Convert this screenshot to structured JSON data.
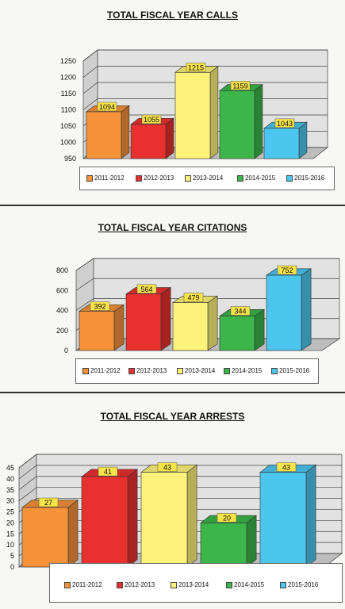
{
  "colors": {
    "2011-2012": "#f5923a",
    "2012-2013": "#e8312f",
    "2013-2014": "#fdf37a",
    "2014-2015": "#3cb54a",
    "2015-2016": "#4cc6ee"
  },
  "chart_data": [
    {
      "type": "bar",
      "title": "TOTAL FISCAL YEAR CALLS",
      "categories": [
        "2011-2012",
        "2012-2013",
        "2013-2014",
        "2014-2015",
        "2015-2016"
      ],
      "values": [
        1094,
        1055,
        1215,
        1159,
        1043
      ],
      "data_labels": [
        "1094",
        "1055",
        "1215",
        "1159",
        "1043"
      ],
      "yticks": [
        "950",
        "1000",
        "1050",
        "1100",
        "1150",
        "1200",
        "1250"
      ],
      "ylim": [
        950,
        1250
      ],
      "legend": [
        "2011-2012",
        "2012-2013",
        "2013-2014",
        "2014-2015",
        "2015-2016"
      ],
      "legend_position": "bottom",
      "grid": true
    },
    {
      "type": "bar",
      "title": "TOTAL FISCAL YEAR CITATIONS",
      "categories": [
        "2011-2012",
        "2012-2013",
        "2013-2014",
        "2014-2015",
        "2015-2016"
      ],
      "values": [
        392,
        564,
        479,
        344,
        752
      ],
      "data_labels": [
        "392",
        "564",
        "479",
        "344",
        "752"
      ],
      "yticks": [
        "0",
        "200",
        "400",
        "600",
        "800"
      ],
      "ylim": [
        0,
        800
      ],
      "legend": [
        "2011-2012",
        "2012-2013",
        "2013-2014",
        "2014-2015",
        "2015-2016"
      ],
      "legend_position": "bottom",
      "grid": true
    },
    {
      "type": "bar",
      "title": "TOTAL FISCAL YEAR ARRESTS",
      "categories": [
        "2011-2012",
        "2012-2013",
        "2013-2014",
        "2014-2015",
        "2015-2016"
      ],
      "values": [
        27,
        41,
        43,
        20,
        43
      ],
      "data_labels": [
        "27",
        "41",
        "43",
        "20",
        "43"
      ],
      "yticks": [
        "0",
        "5",
        "10",
        "15",
        "20",
        "25",
        "30",
        "35",
        "40",
        "45"
      ],
      "ylim": [
        0,
        45
      ],
      "legend": [
        "2011-2012",
        "2012-2013",
        "2013-2014",
        "2014-2015",
        "2015-2016"
      ],
      "legend_position": "bottom",
      "grid": true
    }
  ]
}
